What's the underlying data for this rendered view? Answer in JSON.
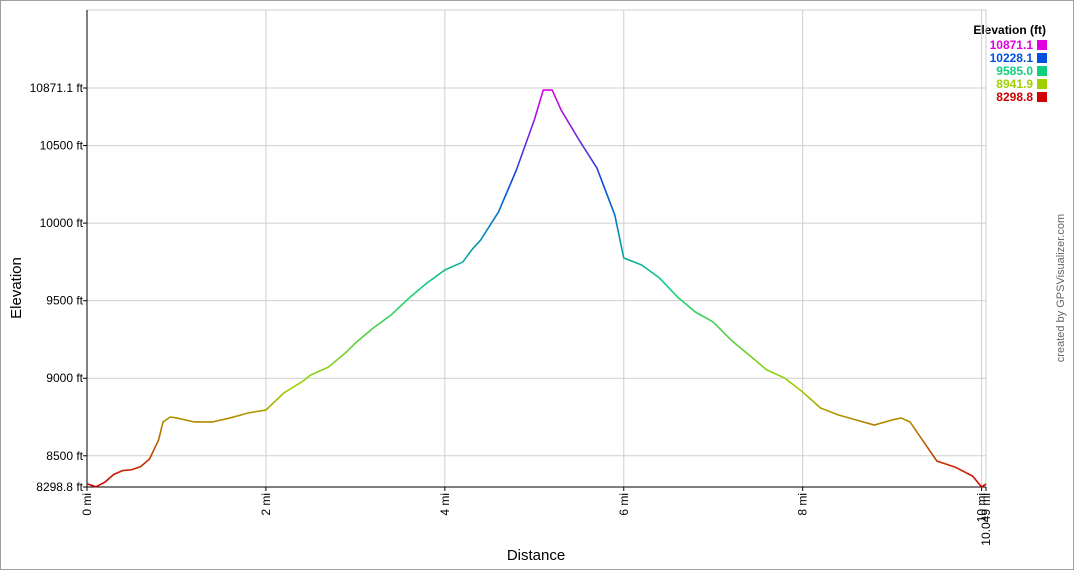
{
  "chart_data": {
    "type": "line",
    "x_label": "Distance",
    "y_label": "Elevation",
    "credit": "created by GPSVisualizer.com",
    "legend": {
      "title": "Elevation (ft)",
      "items": [
        {
          "value": 10871.1,
          "label": "10871.1",
          "color": "#e000e0"
        },
        {
          "value": 10228.1,
          "label": "10228.1",
          "color": "#0050e0"
        },
        {
          "value": 9585.0,
          "label": "9585.0",
          "color": "#10d080"
        },
        {
          "value": 8941.9,
          "label": "8941.9",
          "color": "#a0d000"
        },
        {
          "value": 8298.8,
          "label": "8298.8",
          "color": "#d00000"
        }
      ]
    },
    "xlim": [
      0,
      10.049
    ],
    "ylim": [
      8298.8,
      10871.1
    ],
    "xticks": [
      {
        "value": 0,
        "label": "0 mi"
      },
      {
        "value": 2,
        "label": "2 mi"
      },
      {
        "value": 4,
        "label": "4 mi"
      },
      {
        "value": 6,
        "label": "6 mi"
      },
      {
        "value": 8,
        "label": "8 mi"
      },
      {
        "value": 10,
        "label": "10 mi"
      },
      {
        "value": 10.049,
        "label": "10.049 mi"
      }
    ],
    "yticks": [
      {
        "value": 8298.8,
        "label": "8298.8 ft"
      },
      {
        "value": 8500,
        "label": "8500 ft"
      },
      {
        "value": 9000,
        "label": "9000 ft"
      },
      {
        "value": 9500,
        "label": "9500 ft"
      },
      {
        "value": 10000,
        "label": "10000 ft"
      },
      {
        "value": 10500,
        "label": "10500 ft"
      },
      {
        "value": 10871.1,
        "label": "10871.1 ft"
      }
    ],
    "grid": true,
    "x": [
      0,
      0.1,
      0.2,
      0.3,
      0.4,
      0.5,
      0.6,
      0.7,
      0.8,
      0.85,
      0.93,
      1.0,
      1.2,
      1.4,
      1.6,
      1.8,
      2.0,
      2.2,
      2.4,
      2.5,
      2.7,
      2.9,
      3.0,
      3.2,
      3.4,
      3.6,
      3.8,
      4.0,
      4.2,
      4.3,
      4.4,
      4.6,
      4.8,
      5.0,
      5.1,
      5.2,
      5.3,
      5.5,
      5.7,
      5.9,
      6.0,
      6.2,
      6.4,
      6.6,
      6.8,
      7.0,
      7.2,
      7.4,
      7.6,
      7.8,
      8.0,
      8.2,
      8.4,
      8.6,
      8.8,
      9.0,
      9.1,
      9.2,
      9.4,
      9.5,
      9.7,
      9.9,
      10.0,
      10.049
    ],
    "series": [
      {
        "name": "Elevation",
        "values": [
          8320,
          8300,
          8330,
          8380,
          8405,
          8410,
          8430,
          8480,
          8602,
          8718,
          8750,
          8744,
          8718,
          8718,
          8744,
          8776,
          8795,
          8905,
          8976,
          9021,
          9072,
          9169,
          9227,
          9324,
          9408,
          9517,
          9614,
          9698,
          9749,
          9827,
          9891,
          10072,
          10343,
          10665,
          10858,
          10858,
          10729,
          10536,
          10355,
          10052,
          9775,
          9730,
          9646,
          9524,
          9427,
          9362,
          9246,
          9150,
          9053,
          9001,
          8911,
          8808,
          8763,
          8731,
          8698,
          8731,
          8744,
          8718,
          8550,
          8466,
          8428,
          8369,
          8299,
          8318
        ]
      }
    ]
  }
}
